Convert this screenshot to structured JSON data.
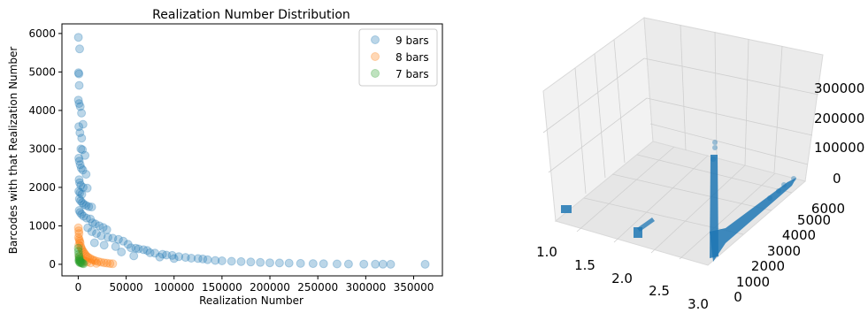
{
  "chart_data": [
    {
      "type": "scatter",
      "title": "Realization Number Distribution",
      "xlabel": "Realization Number",
      "ylabel": "Barcodes with that Realization Number",
      "xlim": [
        -17000,
        380000
      ],
      "ylim": [
        -300,
        6250
      ],
      "xticks": [
        0,
        50000,
        100000,
        150000,
        200000,
        250000,
        300000,
        350000
      ],
      "yticks": [
        0,
        1000,
        2000,
        3000,
        4000,
        5000,
        6000
      ],
      "legend_position": "top-right",
      "grid": false,
      "series": [
        {
          "name": "9 bars",
          "color": "#1f77b4",
          "alpha": 0.3,
          "points": [
            [
              200,
              5900
            ],
            [
              300,
              4980
            ],
            [
              700,
              4950
            ],
            [
              1000,
              4650
            ],
            [
              1500,
              5600
            ],
            [
              200,
              4270
            ],
            [
              900,
              4180
            ],
            [
              2100,
              4100
            ],
            [
              3400,
              3930
            ],
            [
              5000,
              3640
            ],
            [
              600,
              3580
            ],
            [
              1700,
              3420
            ],
            [
              3600,
              3280
            ],
            [
              2800,
              3000
            ],
            [
              4300,
              2980
            ],
            [
              7100,
              2830
            ],
            [
              600,
              2760
            ],
            [
              1100,
              2680
            ],
            [
              2000,
              2590
            ],
            [
              3200,
              2500
            ],
            [
              4800,
              2450
            ],
            [
              8200,
              2340
            ],
            [
              900,
              2200
            ],
            [
              1500,
              2120
            ],
            [
              2700,
              2050
            ],
            [
              5200,
              2000
            ],
            [
              9400,
              1980
            ],
            [
              600,
              1900
            ],
            [
              1800,
              1860
            ],
            [
              3800,
              1820
            ],
            [
              1200,
              1700
            ],
            [
              2500,
              1650
            ],
            [
              4200,
              1600
            ],
            [
              6000,
              1560
            ],
            [
              8300,
              1530
            ],
            [
              11000,
              1500
            ],
            [
              14000,
              1490
            ],
            [
              1000,
              1400
            ],
            [
              2000,
              1350
            ],
            [
              3500,
              1300
            ],
            [
              5600,
              1250
            ],
            [
              8800,
              1200
            ],
            [
              12600,
              1180
            ],
            [
              15000,
              1080
            ],
            [
              17900,
              1050
            ],
            [
              22000,
              1000
            ],
            [
              26000,
              960
            ],
            [
              29800,
              900
            ],
            [
              10000,
              950
            ],
            [
              14200,
              850
            ],
            [
              19000,
              800
            ],
            [
              24000,
              740
            ],
            [
              31000,
              700
            ],
            [
              36000,
              680
            ],
            [
              42000,
              650
            ],
            [
              47000,
              600
            ],
            [
              52000,
              520
            ],
            [
              17000,
              560
            ],
            [
              27000,
              500
            ],
            [
              39000,
              460
            ],
            [
              55000,
              430
            ],
            [
              60000,
              420
            ],
            [
              63000,
              400
            ],
            [
              68000,
              380
            ],
            [
              72000,
              360
            ],
            [
              45000,
              320
            ],
            [
              75000,
              300
            ],
            [
              80000,
              290
            ],
            [
              88000,
              260
            ],
            [
              92000,
              240
            ],
            [
              98000,
              230
            ],
            [
              105000,
              200
            ],
            [
              112000,
              180
            ],
            [
              118000,
              160
            ],
            [
              125000,
              150
            ],
            [
              130000,
              140
            ],
            [
              58000,
              220
            ],
            [
              85000,
              190
            ],
            [
              100000,
              150
            ],
            [
              135000,
              120
            ],
            [
              143000,
              100
            ],
            [
              150000,
              90
            ],
            [
              160000,
              80
            ],
            [
              170000,
              70
            ],
            [
              180000,
              60
            ],
            [
              190000,
              50
            ],
            [
              200000,
              40
            ],
            [
              210000,
              35
            ],
            [
              220000,
              30
            ],
            [
              232000,
              25
            ],
            [
              245000,
              20
            ],
            [
              256000,
              15
            ],
            [
              270000,
              10
            ],
            [
              282000,
              8
            ],
            [
              298000,
              5
            ],
            [
              310000,
              4
            ],
            [
              318000,
              3
            ],
            [
              326000,
              2
            ],
            [
              362000,
              1
            ]
          ]
        },
        {
          "name": "8 bars",
          "color": "#ff7f0e",
          "alpha": 0.3,
          "points": [
            [
              200,
              950
            ],
            [
              500,
              870
            ],
            [
              800,
              800
            ],
            [
              300,
              700
            ],
            [
              1000,
              650
            ],
            [
              1500,
              600
            ],
            [
              2000,
              560
            ],
            [
              600,
              500
            ],
            [
              2600,
              470
            ],
            [
              3200,
              420
            ],
            [
              4000,
              380
            ],
            [
              5000,
              340
            ],
            [
              6000,
              300
            ],
            [
              7200,
              260
            ],
            [
              8500,
              220
            ],
            [
              10000,
              190
            ],
            [
              12000,
              160
            ],
            [
              14000,
              130
            ],
            [
              16000,
              110
            ],
            [
              18000,
              90
            ],
            [
              21000,
              70
            ],
            [
              24000,
              55
            ],
            [
              27000,
              40
            ],
            [
              30000,
              30
            ],
            [
              33000,
              20
            ],
            [
              36000,
              15
            ],
            [
              1200,
              200
            ],
            [
              2500,
              150
            ],
            [
              4500,
              120
            ],
            [
              7000,
              80
            ],
            [
              9500,
              60
            ],
            [
              13000,
              40
            ],
            [
              19000,
              25
            ]
          ]
        },
        {
          "name": "7 bars",
          "color": "#2ca02c",
          "alpha": 0.3,
          "points": [
            [
              100,
              420
            ],
            [
              300,
              340
            ],
            [
              500,
              260
            ],
            [
              800,
              200
            ],
            [
              1000,
              150
            ],
            [
              1400,
              120
            ],
            [
              1800,
              90
            ],
            [
              2400,
              70
            ],
            [
              3000,
              50
            ],
            [
              3800,
              35
            ],
            [
              4500,
              25
            ],
            [
              5500,
              15
            ],
            [
              600,
              100
            ],
            [
              1200,
              60
            ],
            [
              2000,
              40
            ]
          ]
        }
      ]
    },
    {
      "type": "scatter",
      "dimension": "3d",
      "title": "",
      "xticks": [
        "1.0",
        "1.5",
        "2.0",
        "2.5",
        "3.0"
      ],
      "yticks": [
        "0",
        "1000",
        "2000",
        "3000",
        "4000",
        "5000",
        "6000"
      ],
      "zticks": [
        "0",
        "100000",
        "200000",
        "300000"
      ],
      "xlim": [
        1.0,
        3.0
      ],
      "ylim": [
        0,
        6000
      ],
      "zlim": [
        0,
        360000
      ],
      "color": "#1f77b4",
      "description_groups": [
        {
          "x": 1.0,
          "ymin": 100,
          "ymax": 950,
          "zmin": 0,
          "zmax": 2000
        },
        {
          "x": 2.0,
          "ymin": 100,
          "ymax": 950,
          "zmin": 0,
          "zmax": 36000
        },
        {
          "x": 3.0,
          "ymin": 0,
          "ymax": 5900,
          "zmin": 0,
          "zmax": 362000
        }
      ]
    }
  ]
}
